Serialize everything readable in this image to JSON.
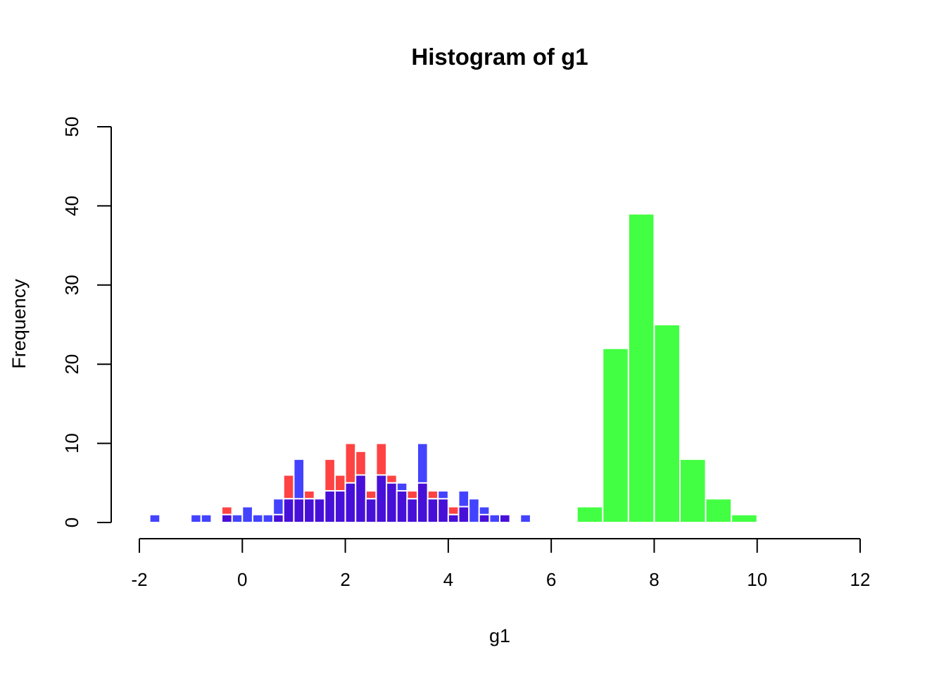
{
  "chart_data": {
    "type": "bar",
    "title": "Histogram of g1",
    "xlabel": "g1",
    "ylabel": "Frequency",
    "xlim": [
      -2,
      12
    ],
    "ylim": [
      0,
      50
    ],
    "x_ticks": [
      "-2",
      "0",
      "2",
      "4",
      "6",
      "8",
      "10",
      "12"
    ],
    "y_ticks": [
      "0",
      "10",
      "20",
      "30",
      "40",
      "50"
    ],
    "x_tick_values": [
      -2,
      0,
      2,
      4,
      6,
      8,
      10,
      12
    ],
    "y_tick_values": [
      0,
      10,
      20,
      30,
      40,
      50
    ],
    "grid": false,
    "overlap_color": "#4710D8",
    "series": [
      {
        "color": "#FF4343",
        "bin_width": 0.2,
        "bins": [
          [
            -0.4,
            2
          ],
          [
            -0.2,
            0
          ],
          [
            0.0,
            0
          ],
          [
            0.2,
            0
          ],
          [
            0.4,
            0
          ],
          [
            0.6,
            1
          ],
          [
            0.8,
            6
          ],
          [
            1.0,
            3
          ],
          [
            1.2,
            4
          ],
          [
            1.4,
            3
          ],
          [
            1.6,
            8
          ],
          [
            1.8,
            6
          ],
          [
            2.0,
            10
          ],
          [
            2.2,
            9
          ],
          [
            2.4,
            4
          ],
          [
            2.6,
            10
          ],
          [
            2.8,
            6
          ],
          [
            3.0,
            4
          ],
          [
            3.2,
            4
          ],
          [
            3.4,
            5
          ],
          [
            3.6,
            4
          ],
          [
            3.8,
            3
          ],
          [
            4.0,
            2
          ],
          [
            4.2,
            2
          ],
          [
            4.4,
            0
          ],
          [
            4.6,
            1
          ],
          [
            4.8,
            0
          ],
          [
            5.0,
            1
          ]
        ]
      },
      {
        "color": "#4343FF",
        "bin_width": 0.2,
        "bins": [
          [
            -1.8,
            1
          ],
          [
            -1.6,
            0
          ],
          [
            -1.4,
            0
          ],
          [
            -1.2,
            0
          ],
          [
            -1.0,
            1
          ],
          [
            -0.8,
            1
          ],
          [
            -0.6,
            0
          ],
          [
            -0.4,
            1
          ],
          [
            -0.2,
            1
          ],
          [
            0.0,
            2
          ],
          [
            0.2,
            1
          ],
          [
            0.4,
            1
          ],
          [
            0.6,
            3
          ],
          [
            0.8,
            3
          ],
          [
            1.0,
            8
          ],
          [
            1.2,
            3
          ],
          [
            1.4,
            3
          ],
          [
            1.6,
            4
          ],
          [
            1.8,
            4
          ],
          [
            2.0,
            5
          ],
          [
            2.2,
            6
          ],
          [
            2.4,
            3
          ],
          [
            2.6,
            6
          ],
          [
            2.8,
            5
          ],
          [
            3.0,
            5
          ],
          [
            3.2,
            3
          ],
          [
            3.4,
            10
          ],
          [
            3.6,
            3
          ],
          [
            3.8,
            4
          ],
          [
            4.0,
            1
          ],
          [
            4.2,
            4
          ],
          [
            4.4,
            3
          ],
          [
            4.6,
            2
          ],
          [
            4.8,
            1
          ],
          [
            5.0,
            1
          ],
          [
            5.2,
            0
          ],
          [
            5.4,
            1
          ]
        ]
      },
      {
        "color": "#43FF43",
        "bin_width": 0.5,
        "bins": [
          [
            6.5,
            2
          ],
          [
            7.0,
            22
          ],
          [
            7.5,
            39
          ],
          [
            8.0,
            25
          ],
          [
            8.5,
            8
          ],
          [
            9.0,
            3
          ],
          [
            9.5,
            1
          ]
        ]
      }
    ]
  }
}
